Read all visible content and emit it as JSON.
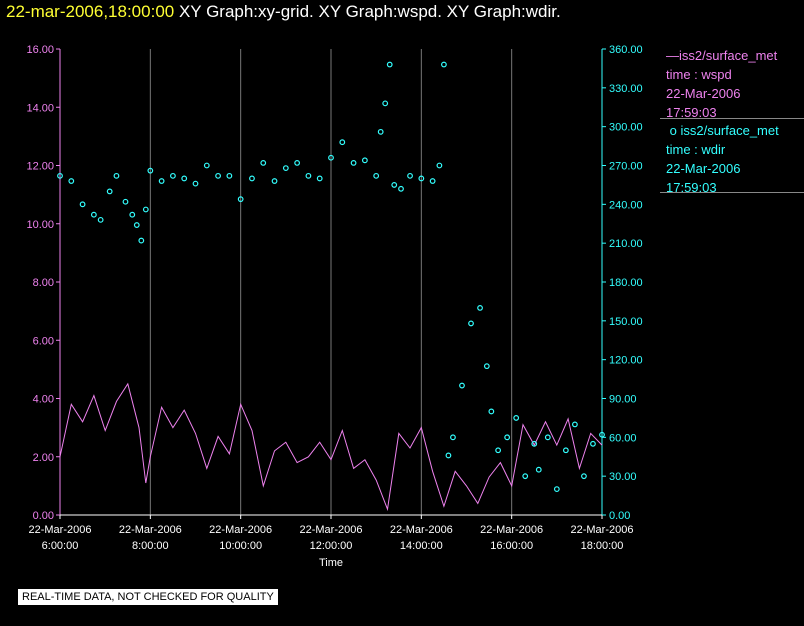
{
  "title": {
    "timestamp": "22-mar-2006,18:00:00",
    "graphs": "XY Graph:xy-grid.  XY Graph:wspd.  XY Graph:wdir."
  },
  "legend": [
    {
      "series": "iss2/surface_met",
      "line1": "time : wspd",
      "line2": "22-Mar-2006",
      "line3": "17:59:03",
      "color": "#ee82ee",
      "marker": "line"
    },
    {
      "series": "iss2/surface_met",
      "line1": "time : wdir",
      "line2": "22-Mar-2006",
      "line3": "17:59:03",
      "color": "#33ffff",
      "marker": "circle"
    }
  ],
  "quality_note": "REAL-TIME DATA, NOT CHECKED FOR QUALITY",
  "chart_data": {
    "type": "scatter",
    "xlabel": "Time",
    "xlim": [
      6.0,
      18.0
    ],
    "x_ticks": [
      {
        "value": 6,
        "date": "22-Mar-2006",
        "time": "6:00:00"
      },
      {
        "value": 8,
        "date": "22-Mar-2006",
        "time": "8:00:00"
      },
      {
        "value": 10,
        "date": "22-Mar-2006",
        "time": "10:00:00"
      },
      {
        "value": 12,
        "date": "22-Mar-2006",
        "time": "12:00:00"
      },
      {
        "value": 14,
        "date": "22-Mar-2006",
        "time": "14:00:00"
      },
      {
        "value": 16,
        "date": "22-Mar-2006",
        "time": "16:00:00"
      },
      {
        "value": 18,
        "date": "22-Mar-2006",
        "time": "18:00:00"
      }
    ],
    "left_axis": {
      "series": "wspd",
      "ylim": [
        0,
        16
      ],
      "ticks": [
        "0.00",
        "2.00",
        "4.00",
        "6.00",
        "8.00",
        "10.00",
        "12.00",
        "14.00",
        "16.00"
      ]
    },
    "right_axis": {
      "series": "wdir",
      "ylim": [
        0,
        360
      ],
      "ticks": [
        "0.00",
        "30.00",
        "60.00",
        "90.00",
        "120.00",
        "150.00",
        "180.00",
        "210.00",
        "240.00",
        "270.00",
        "300.00",
        "330.00",
        "360.00"
      ]
    },
    "series": [
      {
        "name": "wspd",
        "axis": "left",
        "style": "line",
        "x": [
          6.0,
          6.25,
          6.5,
          6.75,
          7.0,
          7.25,
          7.5,
          7.75,
          7.9,
          8.0,
          8.25,
          8.5,
          8.75,
          9.0,
          9.25,
          9.5,
          9.75,
          10.0,
          10.25,
          10.5,
          10.75,
          11.0,
          11.25,
          11.5,
          11.75,
          12.0,
          12.25,
          12.5,
          12.75,
          13.0,
          13.25,
          13.5,
          13.75,
          14.0,
          14.25,
          14.5,
          14.75,
          15.0,
          15.25,
          15.5,
          15.75,
          16.0,
          16.25,
          16.5,
          16.75,
          17.0,
          17.25,
          17.5,
          17.75,
          18.0
        ],
        "y": [
          2.0,
          3.8,
          3.2,
          4.1,
          2.9,
          3.9,
          4.5,
          3.0,
          1.1,
          2.0,
          3.7,
          3.0,
          3.6,
          2.8,
          1.6,
          2.7,
          2.1,
          3.8,
          2.9,
          1.0,
          2.2,
          2.5,
          1.8,
          2.0,
          2.5,
          1.9,
          2.9,
          1.6,
          1.9,
          1.2,
          0.2,
          2.8,
          2.3,
          3.0,
          1.5,
          0.3,
          1.5,
          1.0,
          0.4,
          1.3,
          1.8,
          1.0,
          3.1,
          2.4,
          3.2,
          2.4,
          3.3,
          1.6,
          2.8,
          2.4
        ]
      },
      {
        "name": "wdir",
        "axis": "right",
        "style": "circle",
        "x": [
          6.0,
          6.25,
          6.5,
          6.75,
          6.9,
          7.1,
          7.25,
          7.45,
          7.6,
          7.7,
          7.8,
          7.9,
          8.0,
          8.25,
          8.5,
          8.75,
          9.0,
          9.25,
          9.5,
          9.75,
          10.0,
          10.25,
          10.5,
          10.75,
          11.0,
          11.25,
          11.5,
          11.75,
          12.0,
          12.25,
          12.5,
          12.75,
          13.0,
          13.1,
          13.2,
          13.3,
          13.4,
          13.55,
          13.75,
          14.0,
          14.25,
          14.4,
          14.5,
          14.6,
          14.7,
          14.9,
          15.1,
          15.3,
          15.45,
          15.55,
          15.7,
          15.9,
          16.1,
          16.3,
          16.5,
          16.6,
          16.8,
          17.0,
          17.2,
          17.4,
          17.6,
          17.8,
          18.0
        ],
        "y": [
          262,
          258,
          240,
          232,
          228,
          250,
          262,
          242,
          232,
          224,
          212,
          236,
          266,
          258,
          262,
          260,
          256,
          270,
          262,
          262,
          244,
          260,
          272,
          258,
          268,
          272,
          262,
          260,
          276,
          288,
          272,
          274,
          262,
          296,
          318,
          348,
          255,
          252,
          262,
          260,
          258,
          270,
          348,
          46,
          60,
          100,
          148,
          160,
          115,
          80,
          50,
          60,
          75,
          30,
          55,
          35,
          60,
          20,
          50,
          70,
          30,
          55,
          62
        ]
      }
    ]
  }
}
